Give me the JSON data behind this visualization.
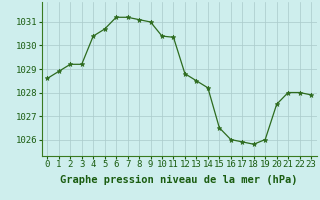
{
  "x": [
    0,
    1,
    2,
    3,
    4,
    5,
    6,
    7,
    8,
    9,
    10,
    11,
    12,
    13,
    14,
    15,
    16,
    17,
    18,
    19,
    20,
    21,
    22,
    23
  ],
  "y": [
    1028.6,
    1028.9,
    1029.2,
    1029.2,
    1030.4,
    1030.7,
    1031.2,
    1031.2,
    1031.1,
    1031.0,
    1030.4,
    1030.35,
    1028.8,
    1028.5,
    1028.2,
    1026.5,
    1026.0,
    1025.9,
    1025.8,
    1026.0,
    1027.5,
    1028.0,
    1028.0,
    1027.9
  ],
  "line_color": "#2d6b1e",
  "marker": "*",
  "marker_size": 3.5,
  "bg_color": "#ceeeed",
  "grid_color": "#aacaca",
  "xlabel": "Graphe pression niveau de la mer (hPa)",
  "xlabel_fontsize": 7.5,
  "xlabel_color": "#1a5c10",
  "tick_color": "#1a5c10",
  "tick_fontsize": 6.5,
  "ytick_labels": [
    1026,
    1027,
    1028,
    1029,
    1030,
    1031
  ],
  "ylim": [
    1025.3,
    1031.85
  ],
  "xlim": [
    -0.5,
    23.5
  ],
  "xtick_labels": [
    "0",
    "1",
    "2",
    "3",
    "4",
    "5",
    "6",
    "7",
    "8",
    "9",
    "10",
    "11",
    "12",
    "13",
    "14",
    "15",
    "16",
    "17",
    "18",
    "19",
    "20",
    "21",
    "22",
    "23"
  ]
}
